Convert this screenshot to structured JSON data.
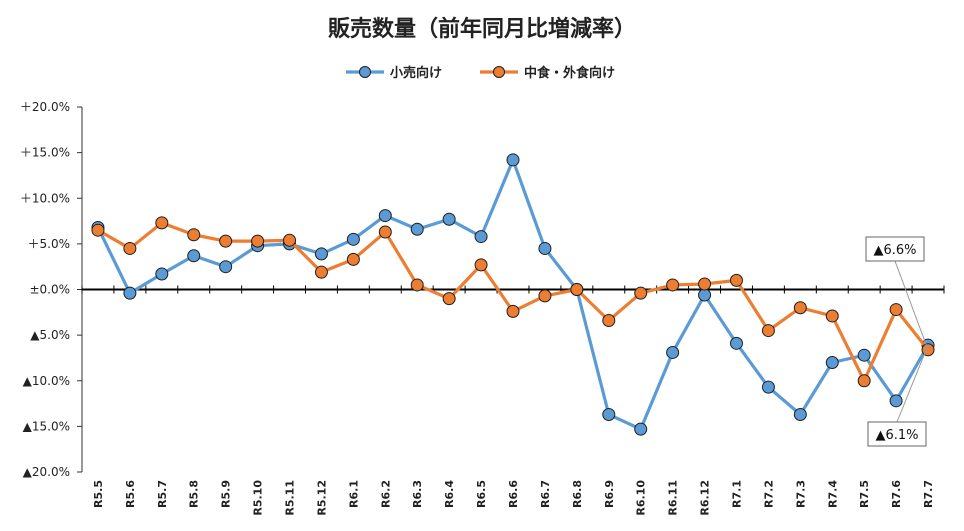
{
  "chart_data": {
    "type": "line",
    "title": "販売数量（前年同月比増減率）",
    "xlabel": "",
    "ylabel": "",
    "ylim": [
      -20,
      20
    ],
    "yticks": [
      {
        "value": 20,
        "label": "＋20.0%"
      },
      {
        "value": 15,
        "label": "＋15.0%"
      },
      {
        "value": 10,
        "label": "＋10.0%"
      },
      {
        "value": 5,
        "label": "＋5.0%"
      },
      {
        "value": 0,
        "label": "±0.0%"
      },
      {
        "value": -5,
        "label": "▲5.0%"
      },
      {
        "value": -10,
        "label": "▲10.0%"
      },
      {
        "value": -15,
        "label": "▲15.0%"
      },
      {
        "value": -20,
        "label": "▲20.0%"
      }
    ],
    "categories": [
      "R5.5",
      "R5.6",
      "R5.7",
      "R5.8",
      "R5.9",
      "R5.10",
      "R5.11",
      "R5.12",
      "R6.1",
      "R6.2",
      "R6.3",
      "R6.4",
      "R6.5",
      "R6.6",
      "R6.7",
      "R6.8",
      "R6.9",
      "R6.10",
      "R6.11",
      "R6.12",
      "R7.1",
      "R7.2",
      "R7.3",
      "R7.4",
      "R7.5",
      "R7.6",
      "R7.7"
    ],
    "series": [
      {
        "name": "小売向け",
        "color": "#5B9BD5",
        "values": [
          6.8,
          -0.4,
          1.7,
          3.7,
          2.5,
          4.8,
          5.0,
          3.9,
          5.5,
          8.1,
          6.6,
          7.7,
          5.8,
          14.2,
          4.5,
          0.0,
          -13.7,
          -15.3,
          -6.9,
          -0.6,
          -5.9,
          -10.7,
          -13.7,
          -8.0,
          -7.2,
          -12.2,
          -6.1
        ]
      },
      {
        "name": "中食・外食向け",
        "color": "#ED7D31",
        "values": [
          6.5,
          4.5,
          7.3,
          6.0,
          5.3,
          5.3,
          5.4,
          1.9,
          3.3,
          6.3,
          0.5,
          -1.0,
          2.7,
          -2.4,
          -0.7,
          0.0,
          -3.4,
          -0.4,
          0.5,
          0.6,
          1.0,
          -4.5,
          -2.0,
          -2.9,
          -10.0,
          -2.2,
          -6.6
        ]
      }
    ],
    "annotations": [
      {
        "text": "▲6.6%",
        "series": "中食・外食向け",
        "category": "R7.7"
      },
      {
        "text": "▲6.1%",
        "series": "小売向け",
        "category": "R7.7"
      }
    ],
    "grid": false,
    "legend": "top-center"
  }
}
